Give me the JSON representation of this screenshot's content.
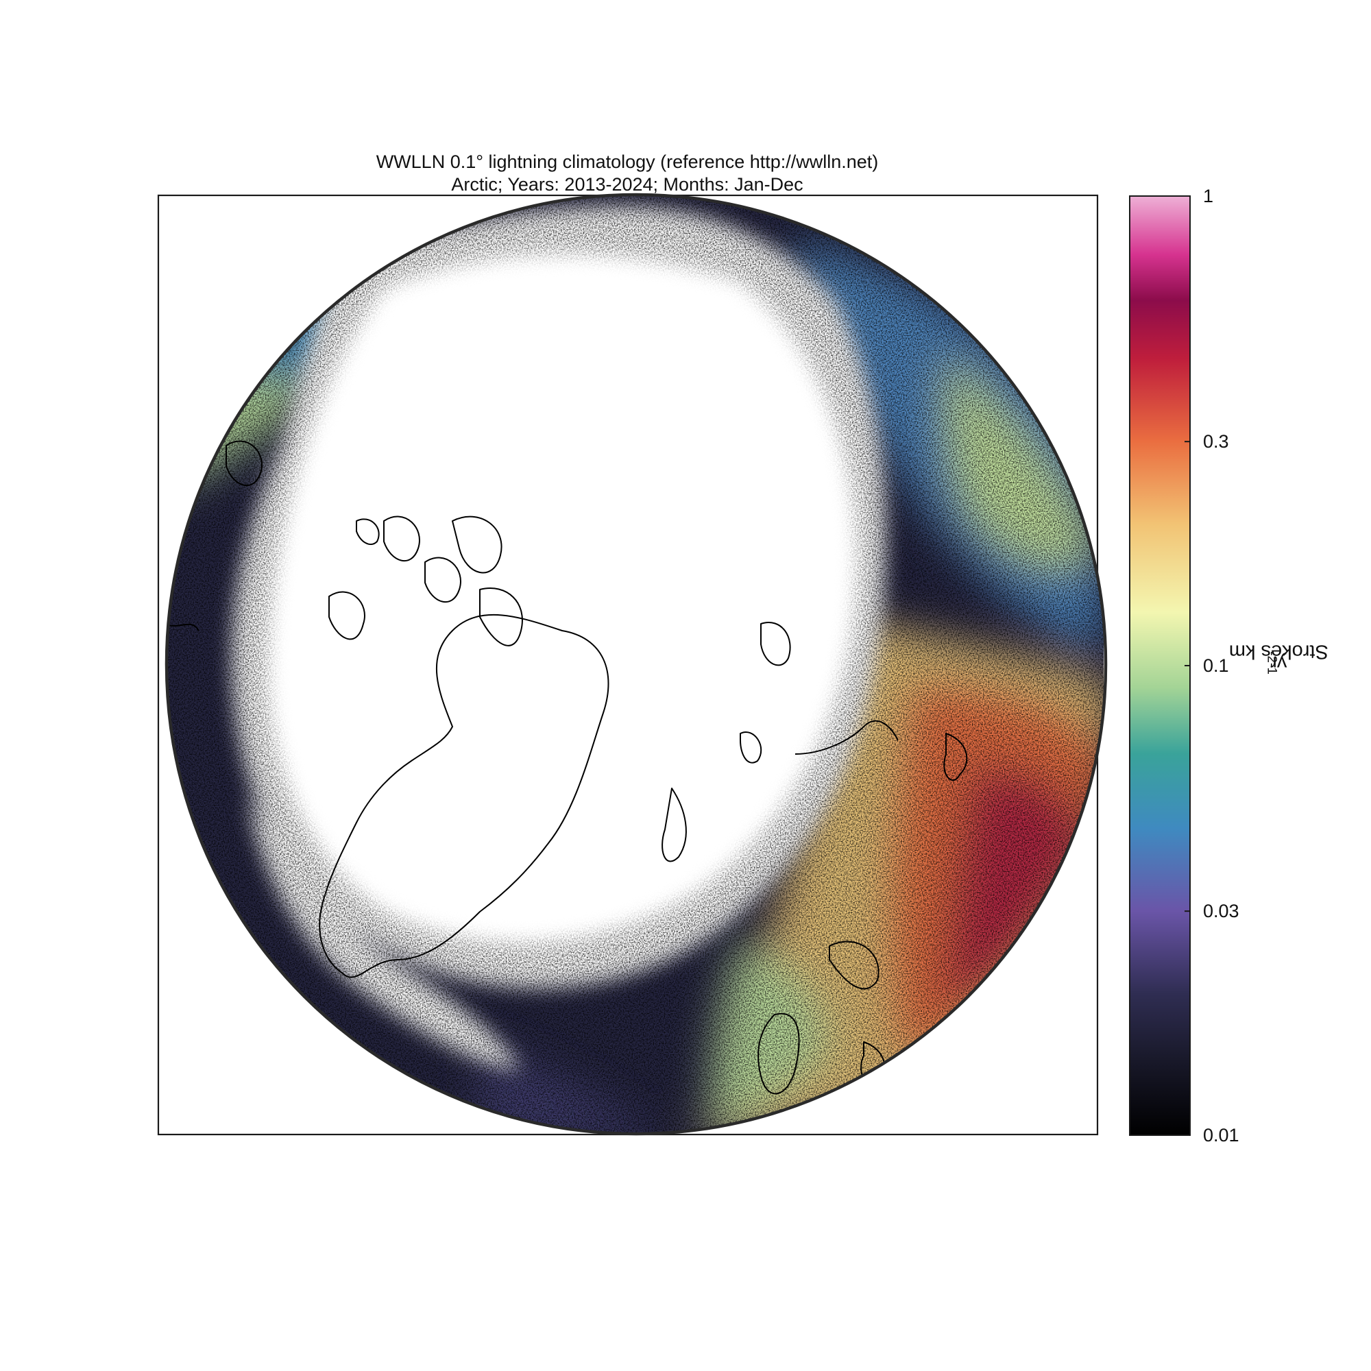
{
  "title": {
    "line1": "WWLLN 0.1° lightning climatology (reference http://wwlln.net)",
    "line2": "Arctic; Years: 2013-2024; Months: Jan-Dec"
  },
  "colorbar": {
    "label_main": "Strokes km",
    "label_exp1": "-2",
    "label_mid": " yr",
    "label_exp2": "-1",
    "scale": "log",
    "range": [
      0.01,
      1
    ],
    "ticks": [
      {
        "value": 1,
        "label": "1"
      },
      {
        "value": 0.3,
        "label": "0.3"
      },
      {
        "value": 0.1,
        "label": "0.1"
      },
      {
        "value": 0.03,
        "label": "0.03"
      },
      {
        "value": 0.01,
        "label": "0.01"
      }
    ],
    "colormap": [
      {
        "v": 0.01,
        "color": "#000000"
      },
      {
        "v": 0.015,
        "color": "#1b1b2e"
      },
      {
        "v": 0.02,
        "color": "#2f2d52"
      },
      {
        "v": 0.03,
        "color": "#6a55a8"
      },
      {
        "v": 0.045,
        "color": "#3f8ac0"
      },
      {
        "v": 0.065,
        "color": "#3aa39a"
      },
      {
        "v": 0.09,
        "color": "#a4d496"
      },
      {
        "v": 0.13,
        "color": "#f3f6b0"
      },
      {
        "v": 0.2,
        "color": "#f2c374"
      },
      {
        "v": 0.3,
        "color": "#ea6e40"
      },
      {
        "v": 0.45,
        "color": "#bf1e3c"
      },
      {
        "v": 0.6,
        "color": "#8c0c4b"
      },
      {
        "v": 0.75,
        "color": "#d6338f"
      },
      {
        "v": 1.0,
        "color": "#eeb0d6"
      }
    ]
  },
  "map": {
    "projection": "north polar stereographic",
    "background": "#ffffff",
    "coastline_color": "#000000",
    "boundary_color": "#2a2a2a"
  }
}
